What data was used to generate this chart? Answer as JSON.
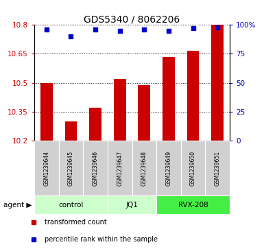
{
  "title": "GDS5340 / 8062206",
  "samples": [
    "GSM1239644",
    "GSM1239645",
    "GSM1239646",
    "GSM1239647",
    "GSM1239648",
    "GSM1239649",
    "GSM1239650",
    "GSM1239651"
  ],
  "transformed_counts": [
    10.5,
    10.3,
    10.37,
    10.52,
    10.49,
    10.635,
    10.665,
    10.8
  ],
  "percentile_ranks": [
    96,
    90,
    96,
    95,
    96,
    95,
    97,
    98
  ],
  "ylim_left": [
    10.2,
    10.8
  ],
  "yticks_left": [
    10.2,
    10.35,
    10.5,
    10.65,
    10.8
  ],
  "ytick_labels_left": [
    "10.2",
    "10.35",
    "10.5",
    "10.65",
    "10.8"
  ],
  "ylim_right": [
    0,
    100
  ],
  "yticks_right": [
    0,
    25,
    50,
    75,
    100
  ],
  "ytick_labels_right": [
    "0",
    "25",
    "50",
    "75",
    "100%"
  ],
  "bar_color": "#cc0000",
  "dot_color": "#0000cc",
  "bar_bottom": 10.2,
  "groups": [
    {
      "label": "control",
      "start": 0,
      "end": 3,
      "color": "#ccffcc"
    },
    {
      "label": "JQ1",
      "start": 3,
      "end": 5,
      "color": "#ccffcc"
    },
    {
      "label": "RVX-208",
      "start": 5,
      "end": 8,
      "color": "#44ee44"
    }
  ],
  "agent_label": "agent"
}
